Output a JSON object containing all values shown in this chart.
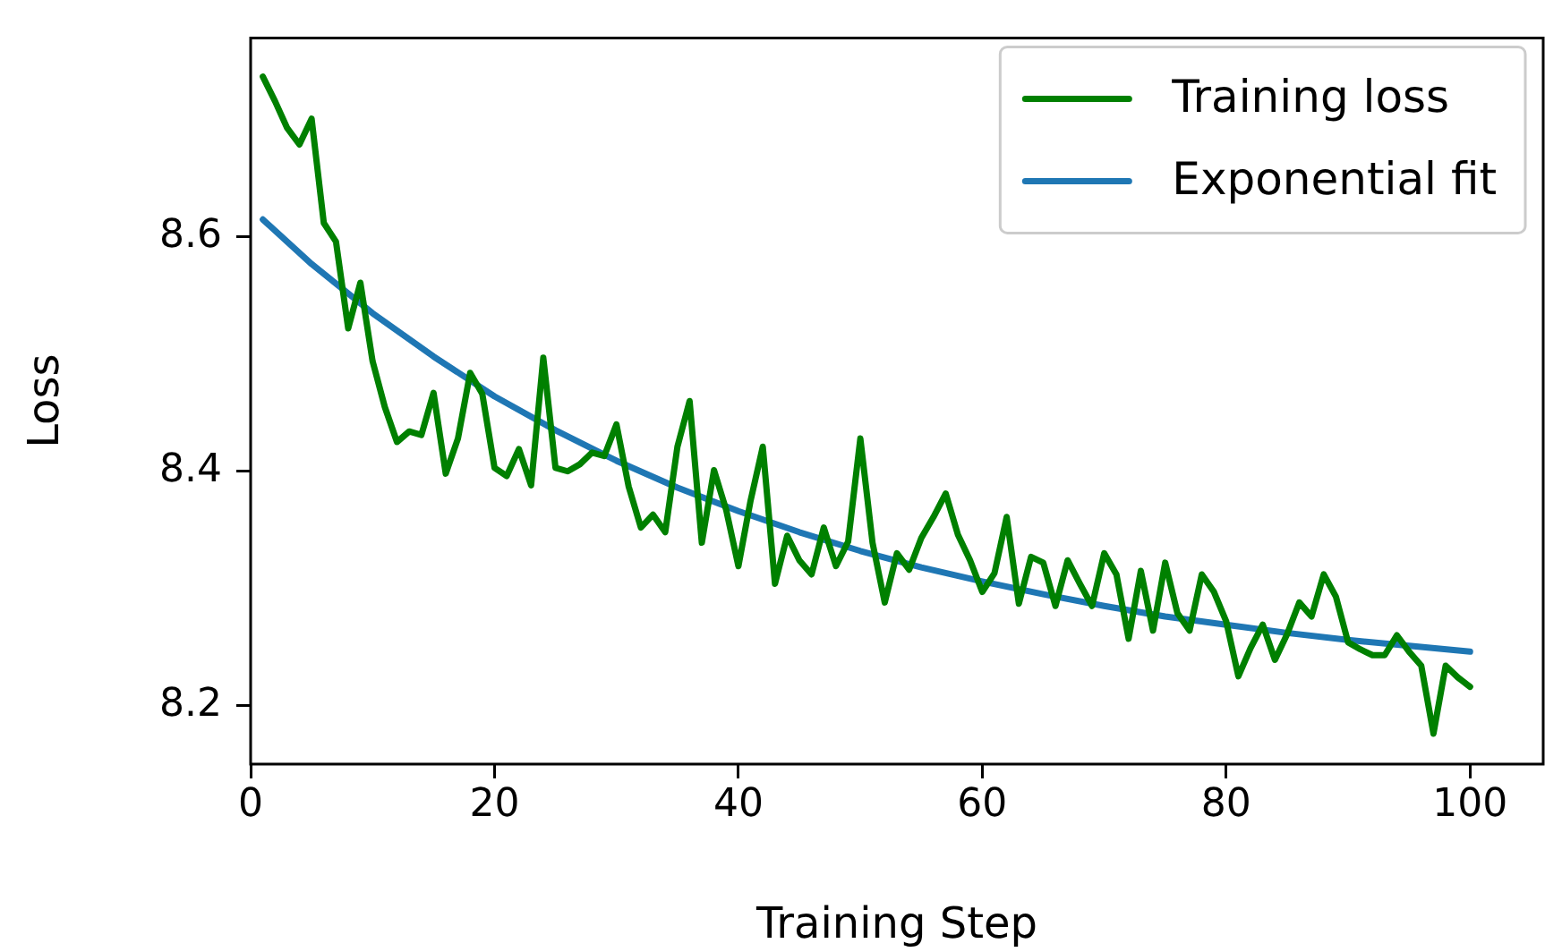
{
  "chart_data": {
    "type": "line",
    "xlabel": "Training Step",
    "ylabel": "Loss",
    "x": [
      1,
      2,
      3,
      4,
      5,
      6,
      7,
      8,
      9,
      10,
      11,
      12,
      13,
      14,
      15,
      16,
      17,
      18,
      19,
      20,
      21,
      22,
      23,
      24,
      25,
      26,
      27,
      28,
      29,
      30,
      31,
      32,
      33,
      34,
      35,
      36,
      37,
      38,
      39,
      40,
      41,
      42,
      43,
      44,
      45,
      46,
      47,
      48,
      49,
      50,
      51,
      52,
      53,
      54,
      55,
      56,
      57,
      58,
      59,
      60,
      61,
      62,
      63,
      64,
      65,
      66,
      67,
      68,
      69,
      70,
      71,
      72,
      73,
      74,
      75,
      76,
      77,
      78,
      79,
      80,
      81,
      82,
      83,
      84,
      85,
      86,
      87,
      88,
      89,
      90,
      91,
      92,
      93,
      94,
      95,
      96,
      97,
      98,
      99,
      100
    ],
    "series": [
      {
        "name": "Training loss",
        "color": "#008000",
        "values": [
          8.737,
          8.716,
          8.693,
          8.679,
          8.701,
          8.612,
          8.596,
          8.522,
          8.561,
          8.494,
          8.455,
          8.425,
          8.434,
          8.431,
          8.467,
          8.398,
          8.428,
          8.484,
          8.466,
          8.403,
          8.396,
          8.419,
          8.388,
          8.497,
          8.403,
          8.4,
          8.406,
          8.416,
          8.413,
          8.44,
          8.387,
          8.352,
          8.363,
          8.348,
          8.421,
          8.46,
          8.339,
          8.401,
          8.367,
          8.319,
          8.375,
          8.421,
          8.304,
          8.345,
          8.324,
          8.312,
          8.352,
          8.319,
          8.34,
          8.428,
          8.339,
          8.288,
          8.33,
          8.316,
          8.343,
          8.361,
          8.381,
          8.346,
          8.324,
          8.297,
          8.313,
          8.361,
          8.287,
          8.327,
          8.322,
          8.285,
          8.324,
          8.304,
          8.285,
          8.33,
          8.312,
          8.257,
          8.315,
          8.264,
          8.322,
          8.279,
          8.264,
          8.312,
          8.297,
          8.272,
          8.225,
          8.249,
          8.269,
          8.239,
          8.261,
          8.288,
          8.276,
          8.312,
          8.293,
          8.254,
          8.248,
          8.243,
          8.243,
          8.26,
          8.246,
          8.234,
          8.176,
          8.234,
          8.224,
          8.216
        ]
      },
      {
        "name": "Exponential fit",
        "color": "#1f77b4",
        "x": [
          1,
          5,
          10,
          15,
          20,
          25,
          30,
          35,
          40,
          45,
          50,
          55,
          60,
          65,
          70,
          75,
          80,
          85,
          90,
          95,
          100
        ],
        "values": [
          8.615,
          8.577,
          8.535,
          8.498,
          8.464,
          8.435,
          8.409,
          8.386,
          8.366,
          8.348,
          8.332,
          8.318,
          8.306,
          8.295,
          8.285,
          8.276,
          8.269,
          8.262,
          8.256,
          8.251,
          8.246
        ]
      }
    ],
    "xlim": [
      0,
      106
    ],
    "xticks": [
      0,
      20,
      40,
      60,
      80,
      100
    ],
    "ylim": [
      8.15,
      8.77
    ],
    "yticks": [
      8.2,
      8.4,
      8.6
    ],
    "grid": false,
    "legend": "top right",
    "marker": "none",
    "line_style": "solid"
  }
}
